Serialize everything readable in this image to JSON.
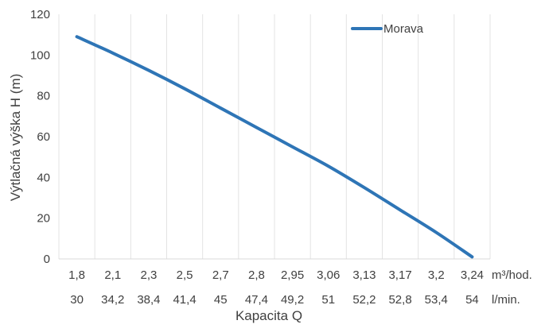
{
  "chart_data": {
    "type": "line",
    "x_categories_row1": [
      "1,8",
      "2,1",
      "2,3",
      "2,5",
      "2,7",
      "2,8",
      "2,95",
      "3,06",
      "3,13",
      "3,17",
      "3,2",
      "3,24"
    ],
    "x_categories_row2": [
      "30",
      "34,2",
      "38,4",
      "41,4",
      "45",
      "47,4",
      "49,2",
      "51",
      "52,2",
      "52,8",
      "53,4",
      "54"
    ],
    "row1_unit": "m³/hod.",
    "row2_unit": "l/min.",
    "series": [
      {
        "name": "Morava",
        "color": "#2e75b6",
        "values": [
          109,
          101,
          92.5,
          83.5,
          74,
          64.5,
          55,
          45.5,
          35,
          24,
          13,
          1
        ]
      }
    ],
    "ylim": [
      0,
      120
    ],
    "yticks": [
      0,
      20,
      40,
      60,
      80,
      100,
      120
    ],
    "ylabel": "Výtlačná výška H (m)",
    "xlabel": "Kapacita Q",
    "grid": "vertical",
    "legend": "top-right"
  }
}
